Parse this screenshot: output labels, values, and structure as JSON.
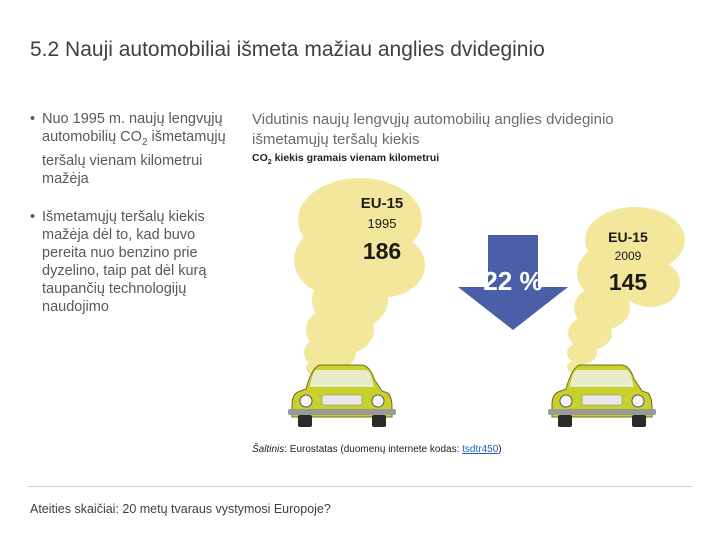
{
  "slide": {
    "number": "5.2",
    "title": "Nauji automobiliai išmeta mažiau anglies dvideginio"
  },
  "bullets": {
    "b1_pre": "Nuo 1995 m. naujų lengvųjų automobilių CO",
    "b1_sub": "2",
    "b1_post": " išmetamųjų teršalų vienam kilometrui mažėja",
    "b2": "Išmetamųjų teršalų kiekis mažėja dėl to, kad buvo pereita nuo benzino prie dyzelino, taip pat dėl kurą taupančių technologijų naudojimo"
  },
  "figure": {
    "title": "Vidutinis naujų lengvųjų automobilių anglies dvideginio išmetamųjų teršalų kiekis",
    "subtitle_pre": "CO",
    "subtitle_sub": "2",
    "subtitle_post": " kiekis gramais vienam kilometrui",
    "left": {
      "region": "EU-15",
      "year": "1995",
      "value": "186"
    },
    "right": {
      "region": "EU-15",
      "year": "2009",
      "value": "145"
    },
    "reduction": "22 %",
    "colors": {
      "smoke": "#f2e79b",
      "arrow": "#4a5fa8",
      "car": "#c7d12a",
      "text": "#1b1b1b"
    }
  },
  "source": {
    "label": "Šaltinis",
    "text": ": Eurostatas (duomenų internete kodas: ",
    "code": "tsdtr450",
    "end": ")"
  },
  "footer": {
    "text": "Ateities skaičiai: 20 metų tvaraus vystymosi Europoje?"
  }
}
